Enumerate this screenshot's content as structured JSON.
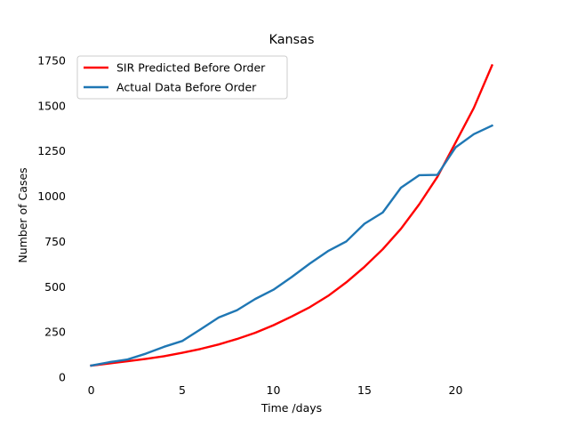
{
  "chart_data": {
    "type": "line",
    "title": "Kansas",
    "xlabel": "Time /days",
    "ylabel": "Number of Cases",
    "xlim": [
      -1.1,
      23.1
    ],
    "ylim": [
      0,
      1750
    ],
    "xticks": [
      0,
      5,
      10,
      15,
      20
    ],
    "yticks": [
      0,
      250,
      500,
      750,
      1000,
      1250,
      1500,
      1750
    ],
    "grid": false,
    "legend_position": "upper-left",
    "x": [
      0,
      1,
      2,
      3,
      4,
      5,
      6,
      7,
      8,
      9,
      10,
      11,
      12,
      13,
      14,
      15,
      16,
      17,
      18,
      19,
      20,
      21,
      22
    ],
    "series": [
      {
        "name": "SIR Predicted Before Order",
        "color": "#ff0000",
        "values": [
          64,
          76,
          88,
          101,
          116,
          135,
          156,
          181,
          211,
          245,
          287,
          335,
          387,
          449,
          524,
          610,
          707,
          820,
          955,
          1107,
          1297,
          1488,
          1723
        ]
      },
      {
        "name": "Actual Data Before Order",
        "color": "#1f77b4",
        "values": [
          64,
          83,
          98,
          130,
          168,
          200,
          264,
          330,
          370,
          432,
          483,
          553,
          628,
          697,
          750,
          848,
          910,
          1047,
          1116,
          1118,
          1270,
          1343,
          1390
        ]
      }
    ]
  }
}
